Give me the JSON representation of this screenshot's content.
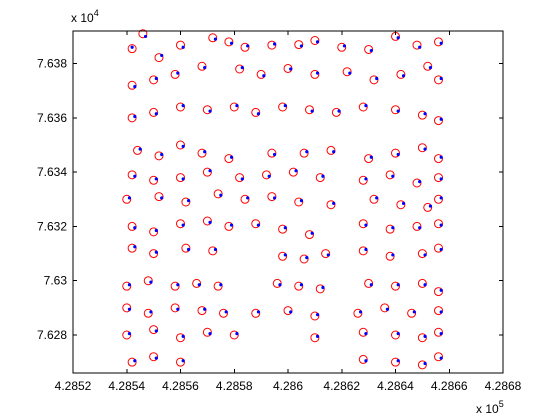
{
  "chart_data": {
    "type": "scatter",
    "title": "",
    "xlabel": "",
    "ylabel": "",
    "x_multiplier_label": {
      "base": "x 10",
      "exp": "5"
    },
    "y_multiplier_label": {
      "base": "x 10",
      "exp": "4"
    },
    "xlim": [
      4.2852,
      4.2868
    ],
    "ylim": [
      7.6266,
      7.6392
    ],
    "x_ticks": [
      4.2852,
      4.2854,
      4.2856,
      4.2858,
      4.286,
      4.2862,
      4.2864,
      4.2866,
      4.2868
    ],
    "x_tick_labels": [
      "4.2852",
      "4.2854",
      "4.2856",
      "4.2858",
      "4.286",
      "4.2862",
      "4.2864",
      "4.2866",
      "4.2868"
    ],
    "y_ticks": [
      7.628,
      7.63,
      7.632,
      7.634,
      7.636,
      7.638
    ],
    "y_tick_labels": [
      "7.628",
      "7.63",
      "7.632",
      "7.634",
      "7.636",
      "7.638"
    ],
    "grid": false,
    "colors": {
      "circles": "#ff0000",
      "dots": "#0000ff"
    },
    "series": [
      {
        "marker": "circle",
        "color": "#ff0000",
        "points": [
          [
            4.28542,
            7.63855
          ],
          [
            4.28546,
            7.6391
          ],
          [
            4.28552,
            7.63822
          ],
          [
            4.2856,
            7.63868
          ],
          [
            4.28572,
            7.63895
          ],
          [
            4.28578,
            7.6388
          ],
          [
            4.28584,
            7.6386
          ],
          [
            4.28594,
            7.63868
          ],
          [
            4.28604,
            7.6387
          ],
          [
            4.2861,
            7.63885
          ],
          [
            4.2862,
            7.6386
          ],
          [
            4.2863,
            7.63852
          ],
          [
            4.2864,
            7.639
          ],
          [
            4.28648,
            7.63868
          ],
          [
            4.28656,
            7.6388
          ],
          [
            4.28542,
            7.6372
          ],
          [
            4.2855,
            7.6374
          ],
          [
            4.28558,
            7.6376
          ],
          [
            4.28568,
            7.6379
          ],
          [
            4.28582,
            7.6378
          ],
          [
            4.2859,
            7.6376
          ],
          [
            4.286,
            7.63782
          ],
          [
            4.2861,
            7.6376
          ],
          [
            4.28622,
            7.6377
          ],
          [
            4.28632,
            7.6374
          ],
          [
            4.28642,
            7.6376
          ],
          [
            4.28652,
            7.6379
          ],
          [
            4.28656,
            7.6374
          ],
          [
            4.28542,
            7.636
          ],
          [
            4.2855,
            7.6362
          ],
          [
            4.2856,
            7.6364
          ],
          [
            4.2857,
            7.6363
          ],
          [
            4.2858,
            7.6364
          ],
          [
            4.28588,
            7.6362
          ],
          [
            4.28598,
            7.6364
          ],
          [
            4.28608,
            7.6363
          ],
          [
            4.28618,
            7.6362
          ],
          [
            4.28628,
            7.6364
          ],
          [
            4.2864,
            7.6363
          ],
          [
            4.2865,
            7.6361
          ],
          [
            4.28656,
            7.6359
          ],
          [
            4.28544,
            7.6348
          ],
          [
            4.28552,
            7.6346
          ],
          [
            4.2856,
            7.635
          ],
          [
            4.28568,
            7.6347
          ],
          [
            4.28578,
            7.6345
          ],
          [
            4.28594,
            7.6347
          ],
          [
            4.28606,
            7.6347
          ],
          [
            4.28616,
            7.6348
          ],
          [
            4.2863,
            7.6345
          ],
          [
            4.2864,
            7.6347
          ],
          [
            4.2865,
            7.6349
          ],
          [
            4.28656,
            7.6345
          ],
          [
            4.28542,
            7.6339
          ],
          [
            4.2855,
            7.6337
          ],
          [
            4.2856,
            7.6338
          ],
          [
            4.2857,
            7.634
          ],
          [
            4.28582,
            7.6338
          ],
          [
            4.28592,
            7.6339
          ],
          [
            4.28602,
            7.634
          ],
          [
            4.28612,
            7.6338
          ],
          [
            4.28628,
            7.6337
          ],
          [
            4.28638,
            7.6339
          ],
          [
            4.28648,
            7.6336
          ],
          [
            4.28656,
            7.6338
          ],
          [
            4.2854,
            7.633
          ],
          [
            4.28552,
            7.6331
          ],
          [
            4.28562,
            7.6329
          ],
          [
            4.28574,
            7.6332
          ],
          [
            4.28584,
            7.633
          ],
          [
            4.28594,
            7.6331
          ],
          [
            4.28604,
            7.6329
          ],
          [
            4.28616,
            7.6328
          ],
          [
            4.28632,
            7.633
          ],
          [
            4.28642,
            7.6328
          ],
          [
            4.28652,
            7.6327
          ],
          [
            4.28656,
            7.633
          ],
          [
            4.28542,
            7.632
          ],
          [
            4.2855,
            7.6318
          ],
          [
            4.2856,
            7.6321
          ],
          [
            4.2857,
            7.6322
          ],
          [
            4.28578,
            7.632
          ],
          [
            4.28588,
            7.6321
          ],
          [
            4.28598,
            7.6319
          ],
          [
            4.28608,
            7.6317
          ],
          [
            4.28628,
            7.6321
          ],
          [
            4.28638,
            7.6319
          ],
          [
            4.28648,
            7.632
          ],
          [
            4.28656,
            7.6321
          ],
          [
            4.28542,
            7.6312
          ],
          [
            4.2855,
            7.631
          ],
          [
            4.28562,
            7.6312
          ],
          [
            4.28572,
            7.6311
          ],
          [
            4.28598,
            7.6309
          ],
          [
            4.28606,
            7.6308
          ],
          [
            4.28614,
            7.631
          ],
          [
            4.28628,
            7.6311
          ],
          [
            4.28638,
            7.6309
          ],
          [
            4.2865,
            7.631
          ],
          [
            4.28656,
            7.6312
          ],
          [
            4.2854,
            7.6298
          ],
          [
            4.28548,
            7.63
          ],
          [
            4.28558,
            7.6298
          ],
          [
            4.28566,
            7.6299
          ],
          [
            4.28574,
            7.6298
          ],
          [
            4.28596,
            7.6299
          ],
          [
            4.28604,
            7.6298
          ],
          [
            4.28612,
            7.6297
          ],
          [
            4.2863,
            7.6299
          ],
          [
            4.2864,
            7.6298
          ],
          [
            4.2865,
            7.6299
          ],
          [
            4.28656,
            7.6296
          ],
          [
            4.2854,
            7.629
          ],
          [
            4.28548,
            7.6288
          ],
          [
            4.28558,
            7.629
          ],
          [
            4.28568,
            7.6289
          ],
          [
            4.28576,
            7.6288
          ],
          [
            4.28588,
            7.6288
          ],
          [
            4.286,
            7.6289
          ],
          [
            4.2861,
            7.6287
          ],
          [
            4.28626,
            7.6288
          ],
          [
            4.28636,
            7.629
          ],
          [
            4.28646,
            7.6288
          ],
          [
            4.28656,
            7.6289
          ],
          [
            4.2854,
            7.628
          ],
          [
            4.2855,
            7.6282
          ],
          [
            4.2856,
            7.6279
          ],
          [
            4.2857,
            7.6281
          ],
          [
            4.2858,
            7.628
          ],
          [
            4.2861,
            7.6279
          ],
          [
            4.28628,
            7.6281
          ],
          [
            4.2864,
            7.628
          ],
          [
            4.2865,
            7.6279
          ],
          [
            4.28656,
            7.6281
          ],
          [
            4.28542,
            7.627
          ],
          [
            4.2855,
            7.6272
          ],
          [
            4.2856,
            7.627
          ],
          [
            4.28628,
            7.6271
          ],
          [
            4.2864,
            7.627
          ],
          [
            4.2865,
            7.6269
          ],
          [
            4.28656,
            7.6272
          ]
        ]
      },
      {
        "marker": "dot",
        "color": "#0000ff",
        "points": [
          [
            4.28542,
            7.6386
          ],
          [
            4.28547,
            7.639
          ],
          [
            4.28553,
            7.6383
          ],
          [
            4.28561,
            7.6386
          ],
          [
            4.28573,
            7.6389
          ],
          [
            4.28579,
            7.63875
          ],
          [
            4.28585,
            7.63865
          ],
          [
            4.28595,
            7.63872
          ],
          [
            4.28605,
            7.63865
          ],
          [
            4.28611,
            7.6388
          ],
          [
            4.28621,
            7.63865
          ],
          [
            4.28631,
            7.63848
          ],
          [
            4.28641,
            7.63895
          ],
          [
            4.28649,
            7.6386
          ],
          [
            4.28657,
            7.63875
          ],
          [
            4.28543,
            7.63715
          ],
          [
            4.28551,
            7.63745
          ],
          [
            4.28559,
            7.63765
          ],
          [
            4.28569,
            7.63785
          ],
          [
            4.28583,
            7.63785
          ],
          [
            4.28591,
            7.63755
          ],
          [
            4.28601,
            7.6378
          ],
          [
            4.28611,
            7.63765
          ],
          [
            4.28623,
            7.63765
          ],
          [
            4.28633,
            7.63745
          ],
          [
            4.28643,
            7.63755
          ],
          [
            4.28653,
            7.63785
          ],
          [
            4.28657,
            7.63745
          ],
          [
            4.28543,
            7.63605
          ],
          [
            4.28551,
            7.63615
          ],
          [
            4.28561,
            7.63645
          ],
          [
            4.28571,
            7.63625
          ],
          [
            4.28581,
            7.63645
          ],
          [
            4.28589,
            7.63615
          ],
          [
            4.28599,
            7.63645
          ],
          [
            4.28609,
            7.63625
          ],
          [
            4.28619,
            7.63625
          ],
          [
            4.28629,
            7.63645
          ],
          [
            4.28641,
            7.63625
          ],
          [
            4.28651,
            7.63615
          ],
          [
            4.28657,
            7.63595
          ],
          [
            4.28545,
            7.63485
          ],
          [
            4.28553,
            7.63465
          ],
          [
            4.28561,
            7.63495
          ],
          [
            4.28569,
            7.63475
          ],
          [
            4.28579,
            7.63455
          ],
          [
            4.28595,
            7.63465
          ],
          [
            4.28607,
            7.63475
          ],
          [
            4.28617,
            7.63475
          ],
          [
            4.28631,
            7.63455
          ],
          [
            4.28641,
            7.63465
          ],
          [
            4.28651,
            7.63485
          ],
          [
            4.28657,
            7.63455
          ],
          [
            4.28543,
            7.63385
          ],
          [
            4.28551,
            7.63375
          ],
          [
            4.28561,
            7.63375
          ],
          [
            4.28571,
            7.63405
          ],
          [
            4.28583,
            7.63375
          ],
          [
            4.28593,
            7.63385
          ],
          [
            4.28603,
            7.63405
          ],
          [
            4.28613,
            7.63385
          ],
          [
            4.28629,
            7.63375
          ],
          [
            4.28639,
            7.63385
          ],
          [
            4.28649,
            7.63365
          ],
          [
            4.28657,
            7.63375
          ],
          [
            4.28541,
            7.63305
          ],
          [
            4.28553,
            7.63305
          ],
          [
            4.28563,
            7.63295
          ],
          [
            4.28575,
            7.63315
          ],
          [
            4.28585,
            7.63305
          ],
          [
            4.28595,
            7.63305
          ],
          [
            4.28605,
            7.63295
          ],
          [
            4.28617,
            7.63285
          ],
          [
            4.28633,
            7.63305
          ],
          [
            4.28643,
            7.63285
          ],
          [
            4.28653,
            7.63275
          ],
          [
            4.28657,
            7.63305
          ],
          [
            4.28543,
            7.63195
          ],
          [
            4.28551,
            7.63185
          ],
          [
            4.28561,
            7.63205
          ],
          [
            4.28571,
            7.63215
          ],
          [
            4.28579,
            7.63205
          ],
          [
            4.28589,
            7.63205
          ],
          [
            4.28599,
            7.63195
          ],
          [
            4.28609,
            7.63175
          ],
          [
            4.28629,
            7.63205
          ],
          [
            4.28639,
            7.63195
          ],
          [
            4.28649,
            7.63195
          ],
          [
            4.28657,
            7.63205
          ],
          [
            4.28543,
            7.63125
          ],
          [
            4.28551,
            7.63105
          ],
          [
            4.28563,
            7.63115
          ],
          [
            4.28573,
            7.63115
          ],
          [
            4.28599,
            7.63095
          ],
          [
            4.28607,
            7.63085
          ],
          [
            4.28615,
            7.63095
          ],
          [
            4.28629,
            7.63115
          ],
          [
            4.28639,
            7.63095
          ],
          [
            4.28651,
            7.63095
          ],
          [
            4.28657,
            7.63115
          ],
          [
            4.28541,
            7.62985
          ],
          [
            4.28549,
            7.62995
          ],
          [
            4.28559,
            7.62985
          ],
          [
            4.28567,
            7.62985
          ],
          [
            4.28575,
            7.62985
          ],
          [
            4.28597,
            7.62985
          ],
          [
            4.28605,
            7.62985
          ],
          [
            4.28613,
            7.62975
          ],
          [
            4.28631,
            7.62985
          ],
          [
            4.28641,
            7.62985
          ],
          [
            4.28651,
            7.62985
          ],
          [
            4.28657,
            7.62965
          ],
          [
            4.28541,
            7.62895
          ],
          [
            4.28549,
            7.62885
          ],
          [
            4.28559,
            7.62895
          ],
          [
            4.28569,
            7.62895
          ],
          [
            4.28577,
            7.62885
          ],
          [
            4.28589,
            7.62885
          ],
          [
            4.28601,
            7.62885
          ],
          [
            4.28611,
            7.62875
          ],
          [
            4.28627,
            7.62885
          ],
          [
            4.28637,
            7.62895
          ],
          [
            4.28647,
            7.62885
          ],
          [
            4.28657,
            7.62885
          ],
          [
            4.28541,
            7.62805
          ],
          [
            4.28551,
            7.62815
          ],
          [
            4.28561,
            7.62795
          ],
          [
            4.28571,
            7.62805
          ],
          [
            4.28581,
            7.62805
          ],
          [
            4.28611,
            7.62795
          ],
          [
            4.28629,
            7.62805
          ],
          [
            4.28641,
            7.62805
          ],
          [
            4.28651,
            7.62795
          ],
          [
            4.28657,
            7.62805
          ],
          [
            4.28543,
            7.62705
          ],
          [
            4.28551,
            7.62715
          ],
          [
            4.28561,
            7.62705
          ],
          [
            4.28629,
            7.62705
          ],
          [
            4.28641,
            7.62705
          ],
          [
            4.28651,
            7.62695
          ],
          [
            4.28657,
            7.62715
          ]
        ]
      }
    ]
  }
}
